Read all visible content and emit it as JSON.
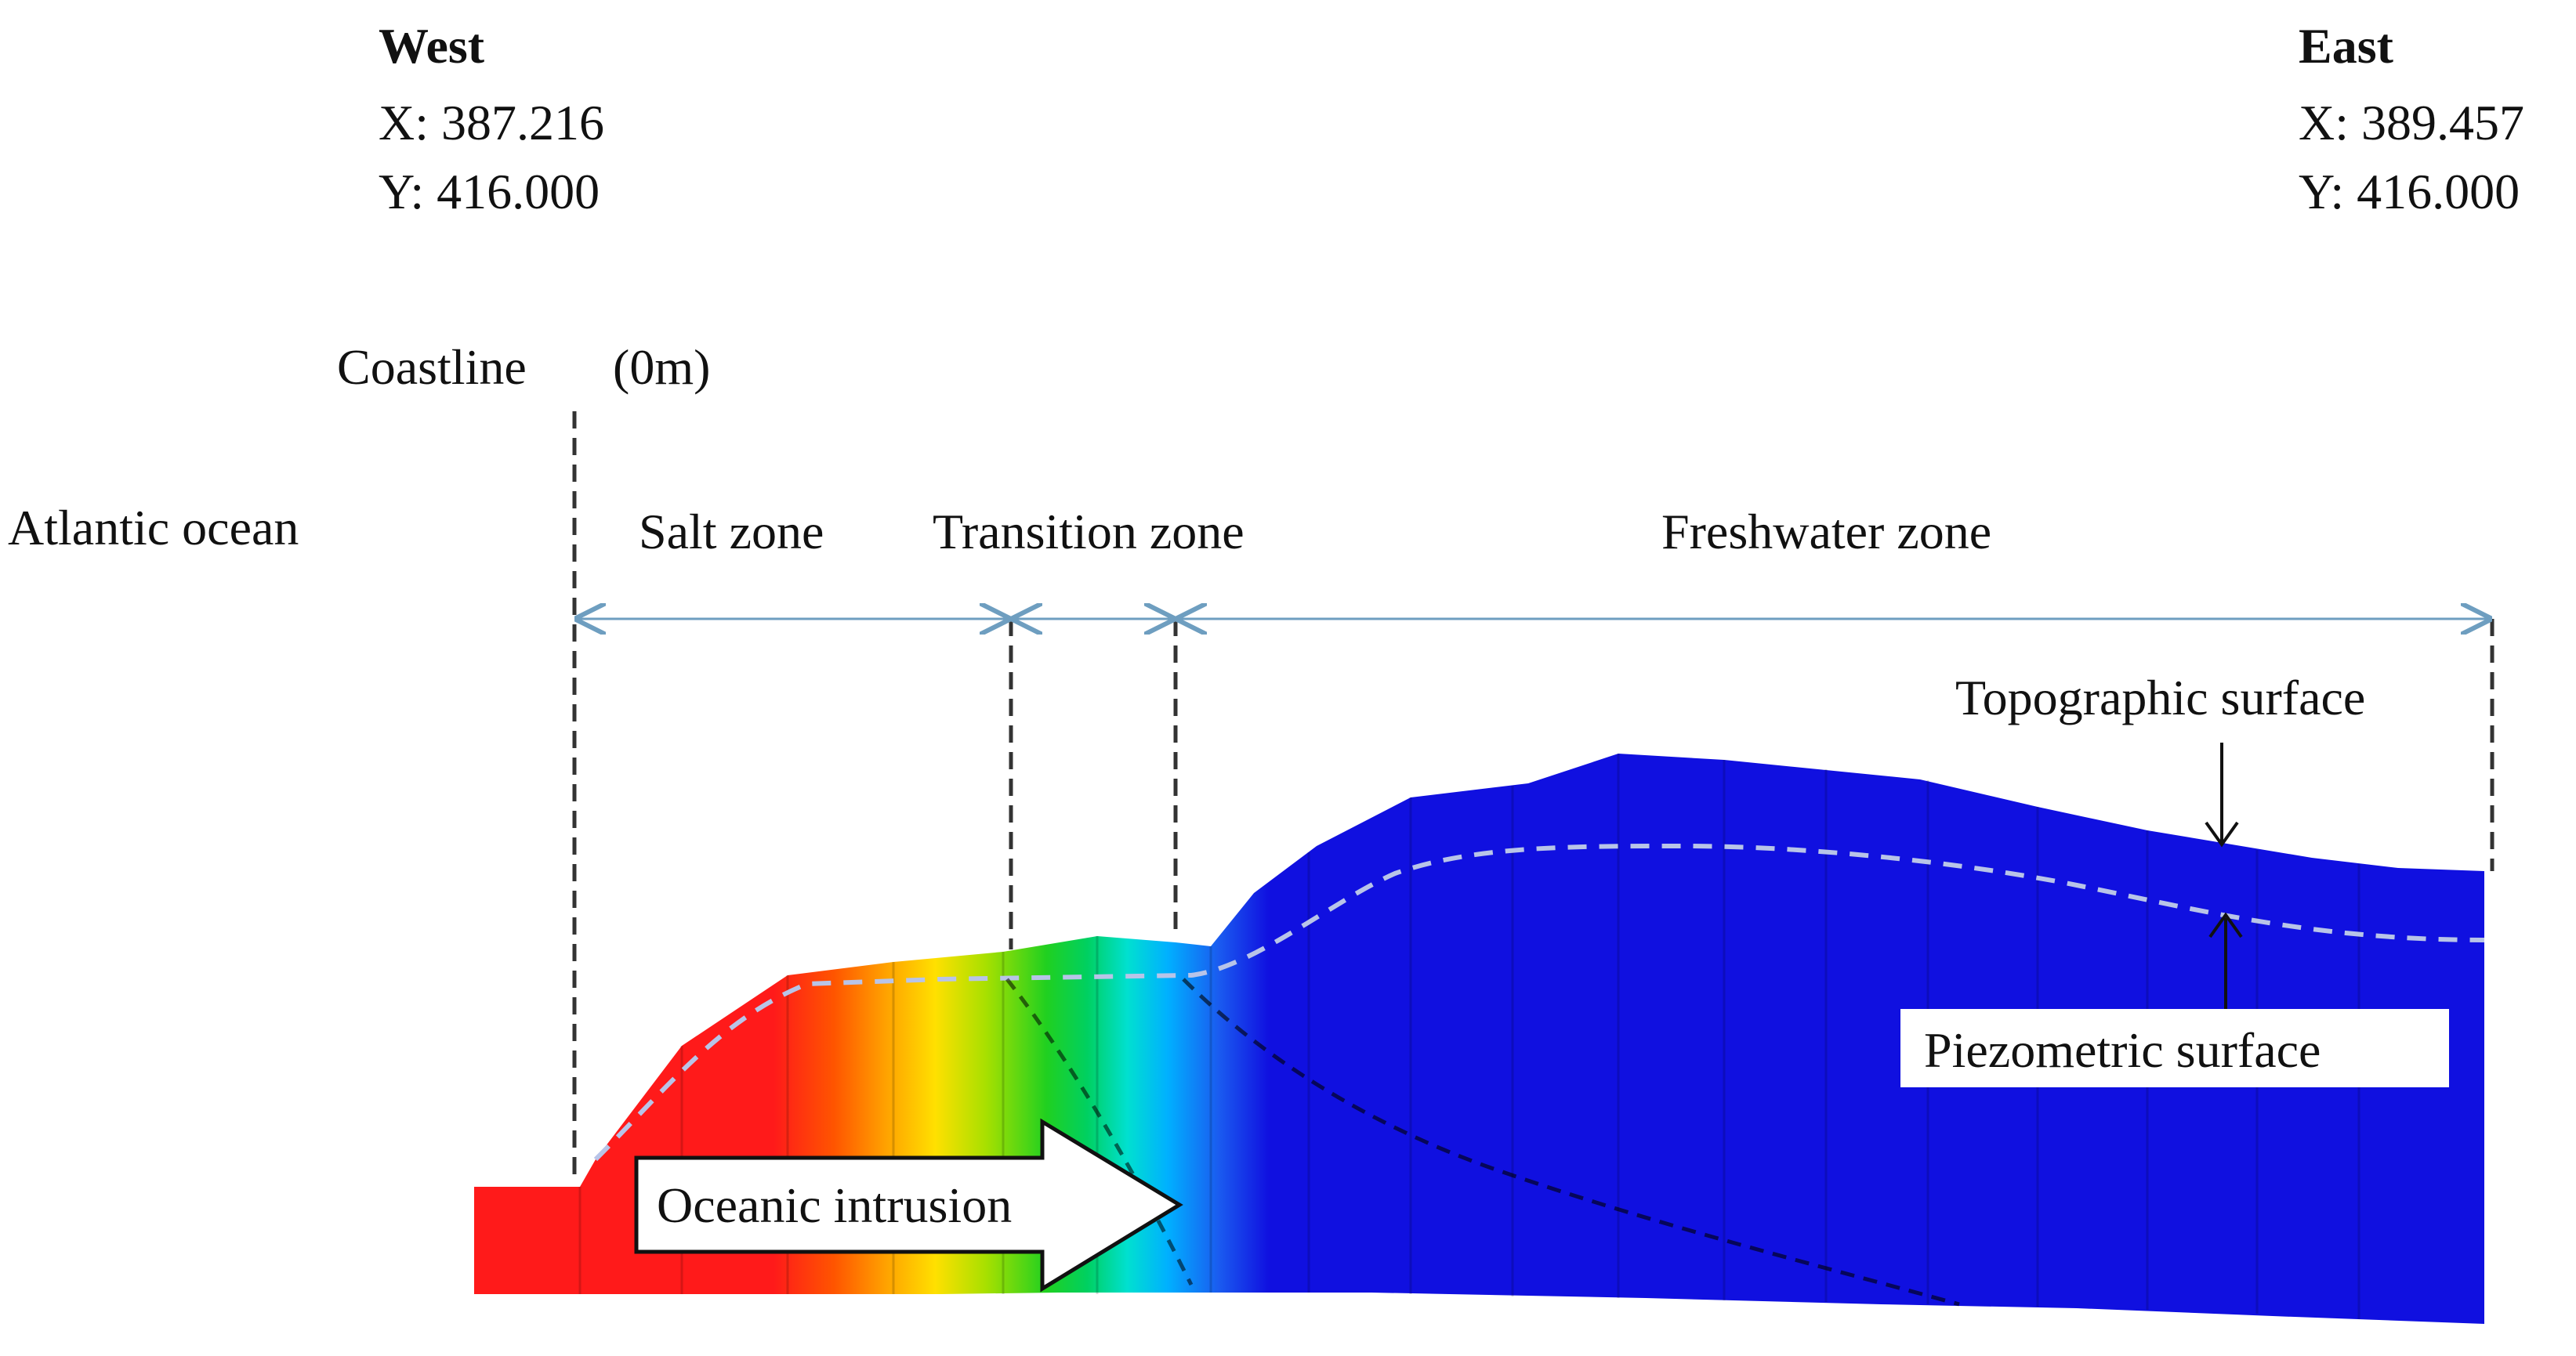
{
  "west": {
    "title": "West",
    "x": "X: 387.216",
    "y": "Y: 416.000"
  },
  "east": {
    "title": "East",
    "x": "X: 389.457",
    "y": "Y: 416.000"
  },
  "labels": {
    "coastline": "Coastline",
    "coastline_value": "(0m)",
    "ocean": "Atlantic ocean",
    "salt_zone": "Salt zone",
    "transition_zone": "Transition zone",
    "freshwater_zone": "Freshwater zone",
    "topographic_surface": "Topographic surface",
    "piezometric_surface": "Piezometric  surface",
    "oceanic_intrusion": "Oceanic intrusion"
  },
  "colors": {
    "salt": "#ff1a1a",
    "fresh": "#1010e0",
    "arrow_line": "#6e9ec0",
    "piezometric_line": "#b8c4e8"
  }
}
